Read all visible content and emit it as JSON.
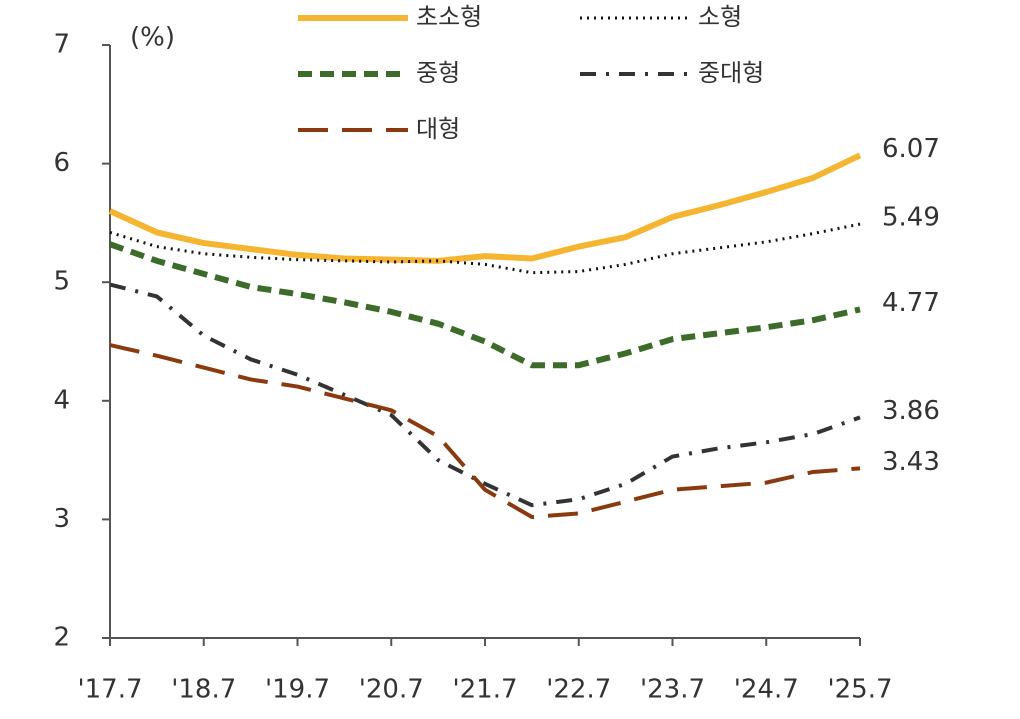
{
  "chart_data": {
    "type": "line",
    "y_label": "(%)",
    "categories": [
      "'17.7",
      null,
      "'18.7",
      null,
      "'19.7",
      null,
      "'20.7",
      null,
      "'21.7",
      null,
      "'22.7",
      null,
      "'23.7",
      null,
      "'24.7",
      null,
      "'25.7"
    ],
    "series": [
      {
        "name": "초소형",
        "color": "#f5b530",
        "dash": "solid",
        "values": [
          5.6,
          5.42,
          5.33,
          5.28,
          5.23,
          5.2,
          5.19,
          5.18,
          5.22,
          5.2,
          5.3,
          5.38,
          5.55,
          5.65,
          5.76,
          5.88,
          6.07
        ]
      },
      {
        "name": "소형",
        "color": "#111111",
        "dash": "dotted",
        "values": [
          5.42,
          5.3,
          5.24,
          5.21,
          5.19,
          5.18,
          5.17,
          5.18,
          5.15,
          5.08,
          5.09,
          5.15,
          5.24,
          5.29,
          5.34,
          5.41,
          5.49
        ]
      },
      {
        "name": "중형",
        "color": "#3d6b2a",
        "dash": "dashed",
        "values": [
          5.32,
          5.18,
          5.07,
          4.96,
          4.9,
          4.83,
          4.75,
          4.65,
          4.5,
          4.3,
          4.3,
          4.4,
          4.52,
          4.57,
          4.62,
          4.68,
          4.77
        ]
      },
      {
        "name": "중대형",
        "color": "#333333",
        "dash": "dashdot",
        "values": [
          4.98,
          4.88,
          4.55,
          4.35,
          4.22,
          4.05,
          3.88,
          3.5,
          3.3,
          3.12,
          3.17,
          3.3,
          3.53,
          3.6,
          3.65,
          3.72,
          3.86
        ]
      },
      {
        "name": "대형",
        "color": "#8b3a10",
        "dash": "longdash",
        "values": [
          4.47,
          4.38,
          4.28,
          4.18,
          4.12,
          4.02,
          3.92,
          3.7,
          3.25,
          3.02,
          3.05,
          3.15,
          3.25,
          3.28,
          3.31,
          3.4,
          3.43
        ]
      }
    ],
    "ylim": [
      2,
      7
    ],
    "yticks": [
      2,
      3,
      4,
      5,
      6,
      7
    ],
    "grid": false,
    "end_labels": true
  }
}
